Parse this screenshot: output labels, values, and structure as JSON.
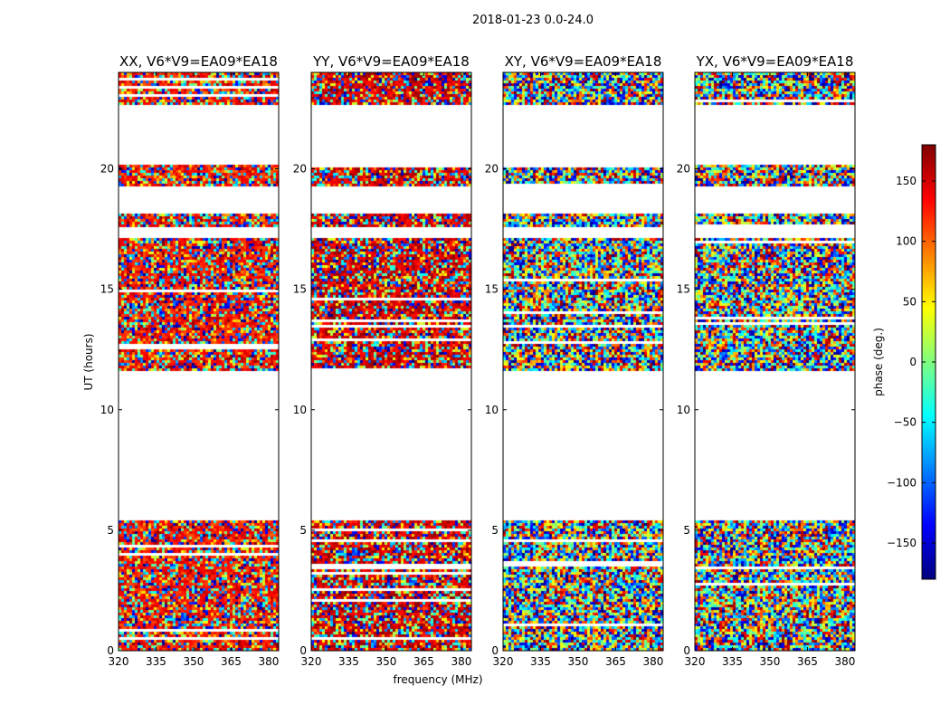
{
  "chart_data": {
    "type": "heatmap",
    "suptitle": "2018-01-23 0.0-24.0",
    "xlabel": "frequency (MHz)",
    "ylabel": "UT (hours)",
    "xlim": [
      320,
      384
    ],
    "ylim": [
      0,
      24
    ],
    "xticks": [
      320,
      335,
      350,
      365,
      380
    ],
    "yticks": [
      0,
      5,
      10,
      15,
      20
    ],
    "colorbar": {
      "label": "phase (deg.)",
      "range": [
        -180,
        180
      ],
      "ticks": [
        150,
        100,
        50,
        0,
        -50,
        -100,
        -150
      ],
      "tick_labels": [
        "150",
        "100",
        "50",
        "0",
        "−50",
        "−100",
        "−150"
      ],
      "colormap": "jet",
      "stops": [
        "#00007f",
        "#0000ff",
        "#007fff",
        "#00ffff",
        "#7fff7f",
        "#ffff00",
        "#ff7f00",
        "#ff0000",
        "#7f0000"
      ]
    },
    "data_blocks_hours": [
      [
        0.0,
        5.5
      ],
      [
        11.7,
        17.2
      ],
      [
        17.6,
        18.2
      ],
      [
        19.3,
        20.2
      ],
      [
        22.7,
        24.0
      ]
    ],
    "panels": [
      {
        "title": "XX, V6*V9=EA09*EA18",
        "pol": "XX",
        "mean_phase_deg": 130
      },
      {
        "title": "YY, V6*V9=EA09*EA18",
        "pol": "YY",
        "mean_phase_deg": 150
      },
      {
        "title": "XY, V6*V9=EA09*EA18",
        "pol": "XY",
        "mean_phase_deg": null
      },
      {
        "title": "YX, V6*V9=EA09*EA18",
        "pol": "YX",
        "mean_phase_deg": null
      }
    ]
  }
}
